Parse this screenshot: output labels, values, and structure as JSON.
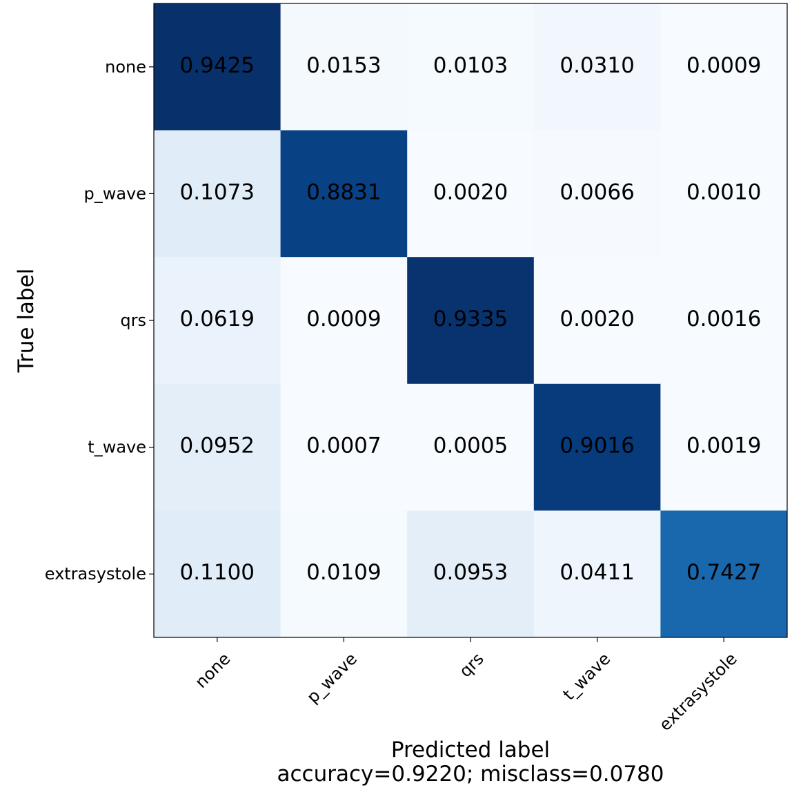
{
  "chart_data": {
    "type": "heatmap",
    "rows": [
      "none",
      "p_wave",
      "qrs",
      "t_wave",
      "extrasystole"
    ],
    "columns": [
      "none",
      "p_wave",
      "qrs",
      "t_wave",
      "extrasystole"
    ],
    "values": [
      [
        0.9425,
        0.0153,
        0.0103,
        0.031,
        0.0009
      ],
      [
        0.1073,
        0.8831,
        0.002,
        0.0066,
        0.001
      ],
      [
        0.0619,
        0.0009,
        0.9335,
        0.002,
        0.0016
      ],
      [
        0.0952,
        0.0007,
        0.0005,
        0.9016,
        0.0019
      ],
      [
        0.11,
        0.0109,
        0.0953,
        0.0411,
        0.7427
      ]
    ],
    "cell_labels": [
      [
        "0.9425",
        "0.0153",
        "0.0103",
        "0.0310",
        "0.0009"
      ],
      [
        "0.1073",
        "0.8831",
        "0.0020",
        "0.0066",
        "0.0010"
      ],
      [
        "0.0619",
        "0.0009",
        "0.9335",
        "0.0020",
        "0.0016"
      ],
      [
        "0.0952",
        "0.0007",
        "0.0005",
        "0.9016",
        "0.0019"
      ],
      [
        "0.1100",
        "0.0109",
        "0.0953",
        "0.0411",
        "0.7427"
      ]
    ],
    "xlabel": "Predicted label",
    "xlabel_sub": "accuracy=0.9220; misclass=0.0780",
    "ylabel": "True label",
    "colormap": "Blues",
    "colormap_stops": [
      "#f7fbff",
      "#deebf7",
      "#c6dbef",
      "#9ecae1",
      "#6baed6",
      "#4292c6",
      "#2171b5",
      "#08519c",
      "#08306b"
    ],
    "text_color_dark": "#000000",
    "text_color_light": "#ffffff",
    "text_threshold_value": 0.95
  }
}
